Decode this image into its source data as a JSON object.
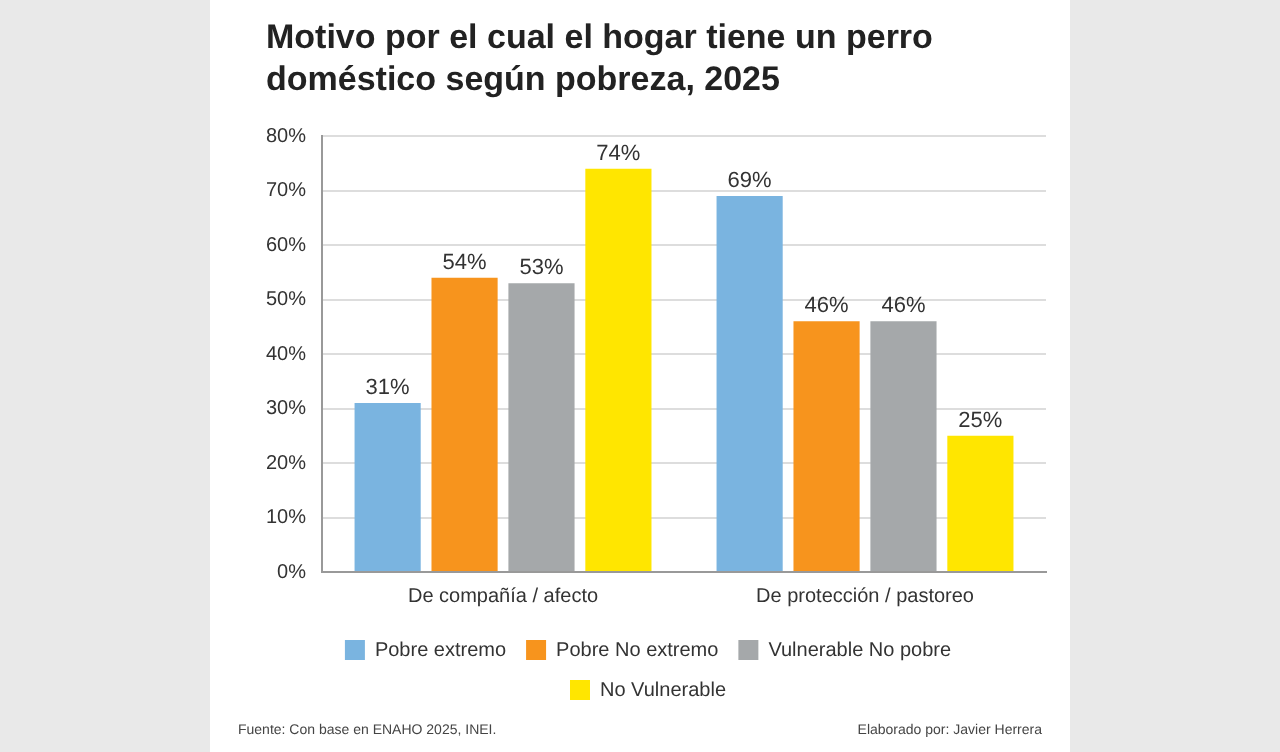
{
  "chart_data": {
    "type": "bar",
    "title": "Motivo por el cual el hogar tiene un perro doméstico según pobreza, 2025",
    "categories": [
      "De compañía / afecto",
      "De protección / pastoreo"
    ],
    "series": [
      {
        "name": "Pobre extremo",
        "color": "#7ab4e0",
        "values": [
          31,
          69
        ],
        "value_labels": [
          "31%",
          "69%"
        ]
      },
      {
        "name": "Pobre No extremo",
        "color": "#f7941d",
        "values": [
          54,
          46
        ],
        "value_labels": [
          "54%",
          "46%"
        ]
      },
      {
        "name": "Vulnerable No pobre",
        "color": "#a5a8aa",
        "values": [
          53,
          46
        ],
        "value_labels": [
          "53%",
          "46%"
        ]
      },
      {
        "name": "No Vulnerable",
        "color": "#ffe600",
        "values": [
          74,
          25
        ],
        "value_labels": [
          "74%",
          "25%"
        ]
      }
    ],
    "ylim": [
      0,
      80
    ],
    "yticks": [
      {
        "value": 0,
        "label": "0%"
      },
      {
        "value": 10,
        "label": "10%"
      },
      {
        "value": 20,
        "label": "20%"
      },
      {
        "value": 30,
        "label": "30%"
      },
      {
        "value": 40,
        "label": "40%"
      },
      {
        "value": 50,
        "label": "50%"
      },
      {
        "value": 60,
        "label": "60%"
      },
      {
        "value": 70,
        "label": "70%"
      },
      {
        "value": 80,
        "label": "80%"
      }
    ],
    "grid": "y",
    "legend": "bottom",
    "annotations": [
      "Fuente: Con base en ENAHO 2025, INEI.",
      "Elaborado por: Javier Herrera"
    ]
  }
}
